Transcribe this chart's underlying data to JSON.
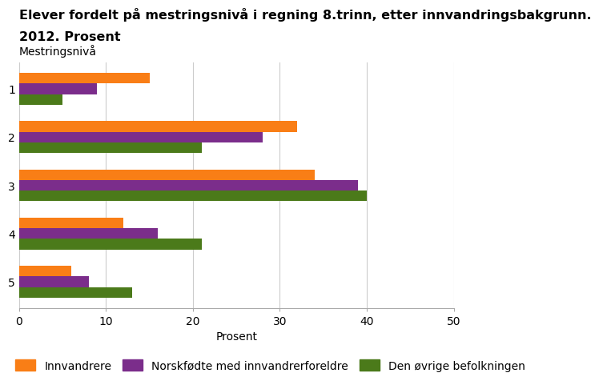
{
  "title_line1": "Elever fordelt på mestringsnivå i regning 8.trinn, etter innvandringsbakgrunn.",
  "title_line2": "2012. Prosent",
  "ylabel_label": "Mestringsnivå",
  "xlabel": "Prosent",
  "categories": [
    "1",
    "2",
    "3",
    "4",
    "5"
  ],
  "series": {
    "Innvandrere": [
      15,
      32,
      34,
      12,
      6
    ],
    "Norskfødte med innvandrerforeldre": [
      9,
      28,
      39,
      16,
      8
    ],
    "Den øvrige befolkningen": [
      5,
      21,
      40,
      21,
      13
    ]
  },
  "colors": {
    "Innvandrere": "#F97E16",
    "Norskfødte med innvandrerforeldre": "#7B2D8B",
    "Den øvrige befolkningen": "#4B7A1A"
  },
  "xlim": [
    0,
    50
  ],
  "xticks": [
    0,
    10,
    20,
    30,
    40,
    50
  ],
  "background_color": "#ffffff",
  "grid_color": "#cccccc",
  "title_fontsize": 11.5,
  "axis_label_fontsize": 10,
  "tick_fontsize": 10,
  "legend_fontsize": 10,
  "ylabel_fontsize": 10
}
